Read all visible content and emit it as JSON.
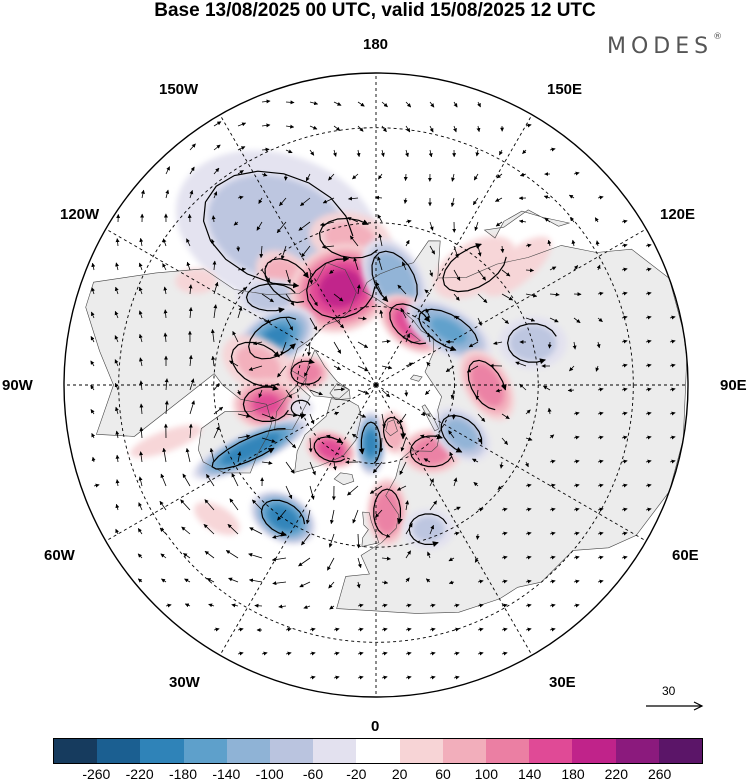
{
  "title": "Base 13/08/2025 00 UTC, valid 15/08/2025 12 UTC",
  "brand": {
    "name": "MODES",
    "mark": "®"
  },
  "projection": "north polar stereographic",
  "longitude_labels": {
    "n180": "180",
    "w150": "150W",
    "e150": "150E",
    "w120": "120W",
    "e120": "120E",
    "w90": "90W",
    "e90": "90E",
    "w60": "60W",
    "e60": "60E",
    "w30": "30W",
    "e30": "30E",
    "z0": "0"
  },
  "reference_vector": {
    "label": "30",
    "icon": "arrow-right-icon"
  },
  "colorbar": {
    "ticks": [
      "-260",
      "-220",
      "-180",
      "-140",
      "-100",
      "-60",
      "-20",
      "20",
      "60",
      "100",
      "140",
      "180",
      "220",
      "260"
    ],
    "colors": [
      "#163b5e",
      "#1b5f91",
      "#2f83b8",
      "#5ea0cb",
      "#8fb3d6",
      "#bac4df",
      "#e3e1ef",
      "#ffffff",
      "#f7d4d6",
      "#f2aebb",
      "#eb7fa3",
      "#e04a96",
      "#c0238a",
      "#8b1a7d",
      "#5b1568"
    ]
  },
  "anomaly_blobs": [
    {
      "lon": -148,
      "lat": 45,
      "a": 0.4,
      "b": 0.28,
      "ang": 20,
      "v": -80
    },
    {
      "lon": -170,
      "lat": 53,
      "a": 0.16,
      "b": 0.1,
      "ang": 10,
      "v": 70
    },
    {
      "lon": -140,
      "lat": 56,
      "a": 0.14,
      "b": 0.09,
      "ang": 40,
      "v": 90
    },
    {
      "lon": -130,
      "lat": 56,
      "a": 0.13,
      "b": 0.07,
      "ang": 0,
      "v": -90
    },
    {
      "lon": -160,
      "lat": 64,
      "a": 0.18,
      "b": 0.15,
      "ang": -20,
      "v": 200
    },
    {
      "lon": 170,
      "lat": 63,
      "a": 0.16,
      "b": 0.1,
      "ang": 60,
      "v": -140
    },
    {
      "lon": 150,
      "lat": 72,
      "a": 0.13,
      "b": 0.08,
      "ang": 40,
      "v": 170
    },
    {
      "lon": 127,
      "lat": 67,
      "a": 0.17,
      "b": 0.08,
      "ang": 30,
      "v": -150
    },
    {
      "lon": 140,
      "lat": 52,
      "a": 0.18,
      "b": 0.1,
      "ang": -30,
      "v": 60
    },
    {
      "lon": -115,
      "lat": 62,
      "a": 0.15,
      "b": 0.09,
      "ang": -30,
      "v": -190
    },
    {
      "lon": -100,
      "lat": 60,
      "a": 0.15,
      "b": 0.1,
      "ang": 30,
      "v": 70
    },
    {
      "lon": -100,
      "lat": 72,
      "a": 0.08,
      "b": 0.06,
      "ang": 0,
      "v": 140
    },
    {
      "lon": -80,
      "lat": 62,
      "a": 0.12,
      "b": 0.09,
      "ang": 0,
      "v": 150
    },
    {
      "lon": -73,
      "lat": 70,
      "a": 0.05,
      "b": 0.04,
      "ang": 0,
      "v": -60
    },
    {
      "lon": -63,
      "lat": 55,
      "a": 0.22,
      "b": 0.055,
      "ang": -25,
      "v": -220
    },
    {
      "lon": -35,
      "lat": 70,
      "a": 0.09,
      "b": 0.06,
      "ang": 20,
      "v": 170
    },
    {
      "lon": -5,
      "lat": 75,
      "a": 0.11,
      "b": 0.05,
      "ang": 90,
      "v": -200
    },
    {
      "lon": 20,
      "lat": 77,
      "a": 0.08,
      "b": 0.05,
      "ang": 80,
      "v": 100
    },
    {
      "lon": -35,
      "lat": 50,
      "a": 0.12,
      "b": 0.08,
      "ang": 30,
      "v": -210
    },
    {
      "lon": 5,
      "lat": 58,
      "a": 0.12,
      "b": 0.07,
      "ang": 90,
      "v": 140
    },
    {
      "lon": 20,
      "lat": 52,
      "a": 0.1,
      "b": 0.08,
      "ang": 0,
      "v": -70
    },
    {
      "lon": 40,
      "lat": 68,
      "a": 0.11,
      "b": 0.08,
      "ang": 0,
      "v": 130
    },
    {
      "lon": 60,
      "lat": 65,
      "a": 0.12,
      "b": 0.08,
      "ang": 40,
      "v": -120
    },
    {
      "lon": 90,
      "lat": 62,
      "a": 0.14,
      "b": 0.08,
      "ang": 60,
      "v": 130
    },
    {
      "lon": 105,
      "lat": 50,
      "a": 0.13,
      "b": 0.1,
      "ang": 0,
      "v": -80
    },
    {
      "lon": 130,
      "lat": 45,
      "a": 0.2,
      "b": 0.08,
      "ang": -40,
      "v": 30
    },
    {
      "lon": -75,
      "lat": 38,
      "a": 0.18,
      "b": 0.05,
      "ang": -20,
      "v": 30
    },
    {
      "lon": -50,
      "lat": 40,
      "a": 0.12,
      "b": 0.06,
      "ang": 30,
      "v": 30
    },
    {
      "lon": -120,
      "lat": 40,
      "a": 0.1,
      "b": 0.06,
      "ang": 0,
      "v": 30
    }
  ]
}
